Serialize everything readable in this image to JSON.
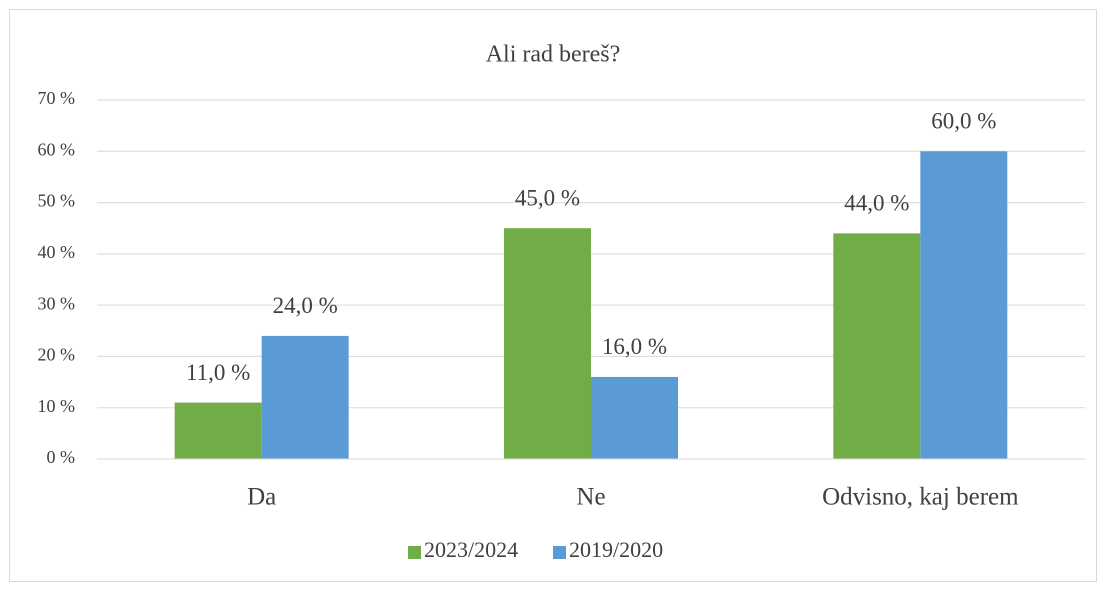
{
  "chart_data": {
    "type": "bar",
    "title": "Ali rad bereš?",
    "categories": [
      "Da",
      "Ne",
      "Odvisno, kaj berem"
    ],
    "series": [
      {
        "name": "2023/2024",
        "color": "#70ad47",
        "values": [
          11,
          45,
          44
        ],
        "value_labels": [
          "11,0 %",
          "45,0 %",
          "44,0 %"
        ]
      },
      {
        "name": "2019/2020",
        "color": "#5b9bd5",
        "values": [
          24,
          16,
          60
        ],
        "value_labels": [
          "24,0 %",
          "16,0 %",
          "60,0 %"
        ]
      }
    ],
    "ylim": [
      0,
      70
    ],
    "yticks": [
      {
        "value": 0,
        "label": "0 %"
      },
      {
        "value": 10,
        "label": "10 %"
      },
      {
        "value": 20,
        "label": "20 %"
      },
      {
        "value": 30,
        "label": "30 %"
      },
      {
        "value": 40,
        "label": "40 %"
      },
      {
        "value": 50,
        "label": "50 %"
      },
      {
        "value": 60,
        "label": "60 %"
      },
      {
        "value": 70,
        "label": "70 %"
      }
    ],
    "grid": true,
    "legend": "bottom"
  }
}
